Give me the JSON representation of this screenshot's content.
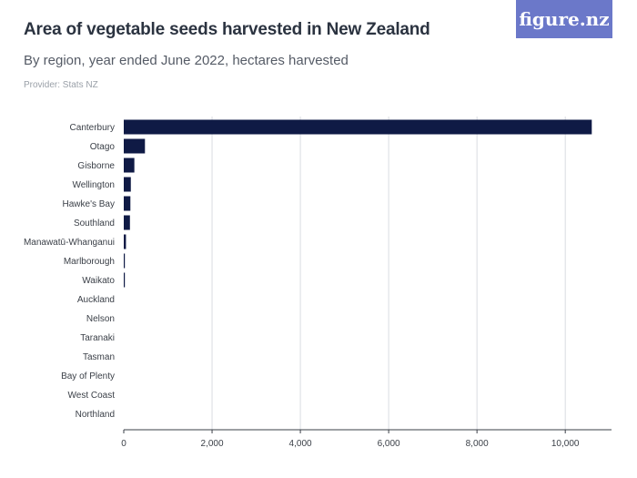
{
  "header": {
    "title": "Area of vegetable seeds harvested in New Zealand",
    "subtitle": "By region, year ended June 2022, hectares harvested",
    "provider": "Provider: Stats NZ",
    "logo_text": "figure.nz"
  },
  "colors": {
    "bar": "#0f1a45",
    "grid": "#d9dce1",
    "logo_bg": "#6b78c9"
  },
  "chart_data": {
    "type": "bar",
    "orientation": "horizontal",
    "title": "Area of vegetable seeds harvested in New Zealand",
    "subtitle": "By region, year ended June 2022, hectares harvested",
    "categories": [
      "Canterbury",
      "Otago",
      "Gisborne",
      "Wellington",
      "Hawke's Bay",
      "Southland",
      "Manawatū-Whanganui",
      "Marlborough",
      "Waikato",
      "Auckland",
      "Nelson",
      "Taranaki",
      "Tasman",
      "Bay of Plenty",
      "West Coast",
      "Northland"
    ],
    "values": [
      10600,
      480,
      240,
      160,
      150,
      140,
      50,
      20,
      10,
      0,
      0,
      0,
      0,
      0,
      0,
      0
    ],
    "xlim": [
      0,
      10800
    ],
    "xticks": [
      0,
      2000,
      4000,
      6000,
      8000,
      10000
    ],
    "xtick_labels": [
      "0",
      "2,000",
      "4,000",
      "6,000",
      "8,000",
      "10,000"
    ],
    "grid": true
  }
}
